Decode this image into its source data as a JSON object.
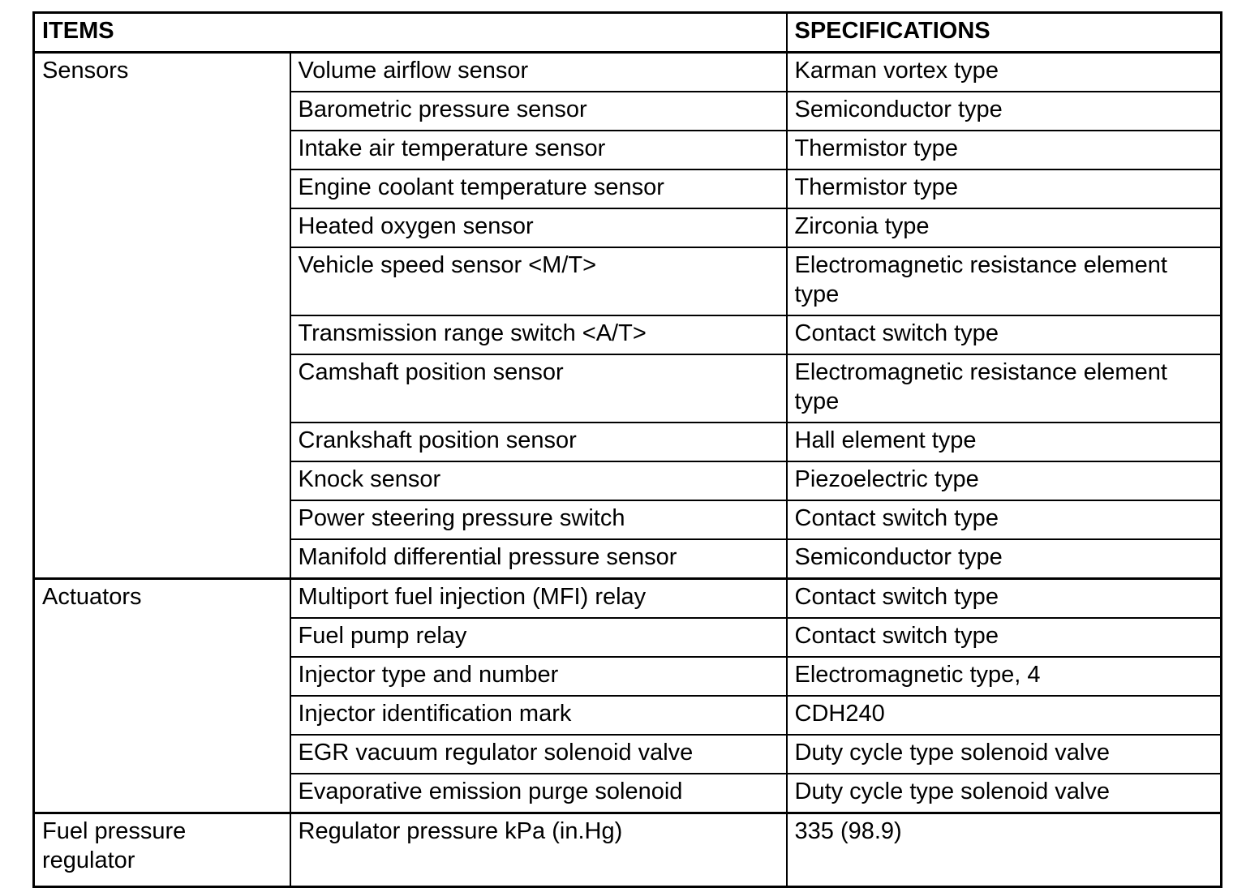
{
  "page": {
    "background_color": "#ffffff",
    "text_color": "#000000",
    "border_color": "#000000"
  },
  "table": {
    "items_header": "ITEMS",
    "specifications_header": "SPECIFICATIONS",
    "groups": [
      {
        "category": "Sensors",
        "rows": [
          {
            "item": "Volume airflow sensor",
            "spec": "Karman vortex type"
          },
          {
            "item": "Barometric pressure sensor",
            "spec": "Semiconductor type"
          },
          {
            "item": "Intake air temperature sensor",
            "spec": "Thermistor type"
          },
          {
            "item": "Engine coolant temperature sensor",
            "spec": "Thermistor type"
          },
          {
            "item": "Heated oxygen sensor",
            "spec": "Zirconia type"
          },
          {
            "item": "Vehicle speed sensor <M/T>",
            "spec": "Electromagnetic resistance element type"
          },
          {
            "item": "Transmission range switch <A/T>",
            "spec": "Contact switch type"
          },
          {
            "item": "Camshaft position sensor",
            "spec": "Electromagnetic resistance element type"
          },
          {
            "item": "Crankshaft position sensor",
            "spec": "Hall element type"
          },
          {
            "item": "Knock sensor",
            "spec": "Piezoelectric type"
          },
          {
            "item": "Power steering pressure switch",
            "spec": "Contact switch type"
          },
          {
            "item": "Manifold differential pressure sensor",
            "spec": "Semiconductor type"
          }
        ]
      },
      {
        "category": "Actuators",
        "rows": [
          {
            "item": "Multiport fuel injection (MFI) relay",
            "spec": "Contact switch type"
          },
          {
            "item": "Fuel pump relay",
            "spec": "Contact switch type"
          },
          {
            "item": "Injector type and number",
            "spec": "Electromagnetic type, 4"
          },
          {
            "item": "Injector identification mark",
            "spec": "CDH240"
          },
          {
            "item": "EGR vacuum regulator solenoid valve",
            "spec": "Duty cycle type solenoid valve"
          },
          {
            "item": "Evaporative emission purge solenoid",
            "spec": "Duty cycle type solenoid valve"
          }
        ]
      },
      {
        "category": "Fuel pressure regulator",
        "rows": [
          {
            "item": "Regulator pressure kPa (in.Hg)",
            "spec": "335 (98.9)"
          }
        ]
      }
    ]
  }
}
